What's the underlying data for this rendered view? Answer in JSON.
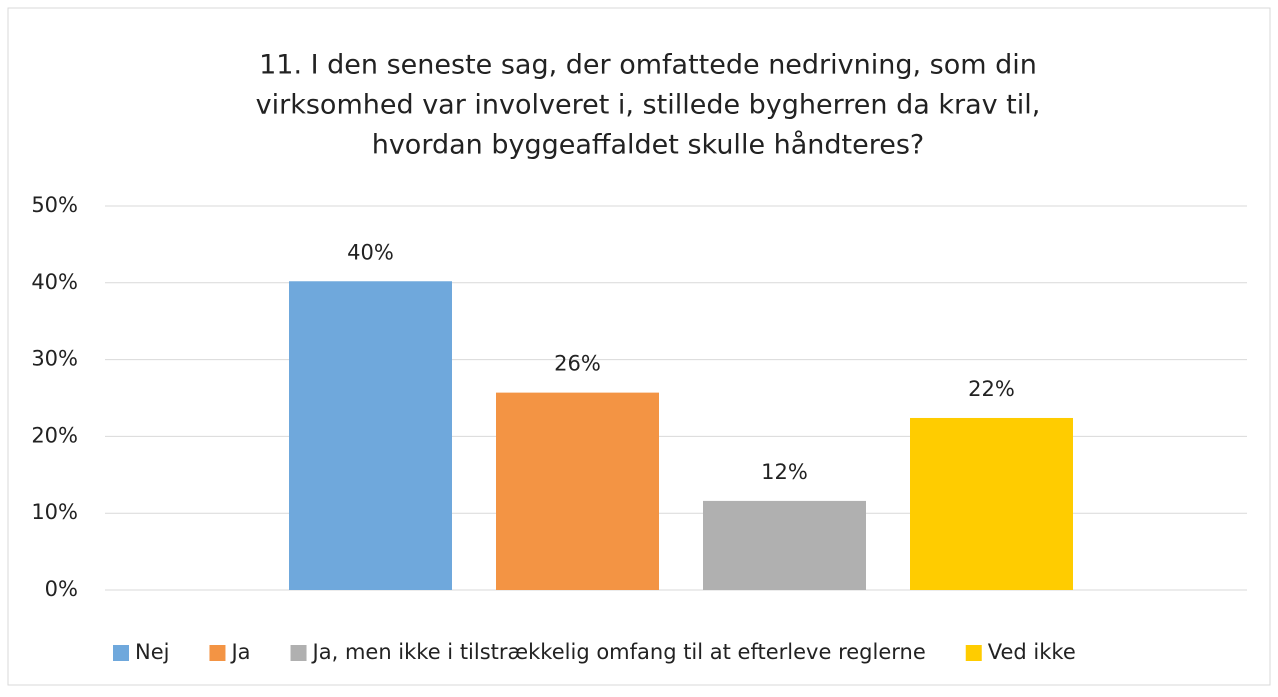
{
  "chart_data": {
    "type": "bar",
    "title": [
      "11. I den seneste sag, der omfattede nedrivning, som din",
      "virksomhed var involveret i, stillede bygherren da krav til,",
      "hvordan byggeaffaldet skulle håndteres?"
    ],
    "categories": [
      null
    ],
    "series": [
      {
        "name": "Nej",
        "color": "#6fa8dc",
        "values": [
          40.2
        ],
        "value_labels": [
          "40%"
        ]
      },
      {
        "name": "Ja",
        "color": "#f39444",
        "values": [
          25.7
        ],
        "value_labels": [
          "26%"
        ]
      },
      {
        "name": "Ja, men ikke i tilstrækkelig omfang til at efterleve reglerne",
        "color": "#b0b0b0",
        "values": [
          11.6
        ],
        "value_labels": [
          "12%"
        ]
      },
      {
        "name": "Ved ikke",
        "color": "#ffcc00",
        "values": [
          22.4
        ],
        "value_labels": [
          "22%"
        ]
      }
    ],
    "ylim": [
      0,
      50
    ],
    "yticks": [
      {
        "value": 0,
        "label": "0%"
      },
      {
        "value": 10,
        "label": "10%"
      },
      {
        "value": 20,
        "label": "20%"
      },
      {
        "value": 30,
        "label": "30%"
      },
      {
        "value": 40,
        "label": "40%"
      },
      {
        "value": 50,
        "label": "50%"
      }
    ],
    "grid": true,
    "legend": "bottom"
  }
}
